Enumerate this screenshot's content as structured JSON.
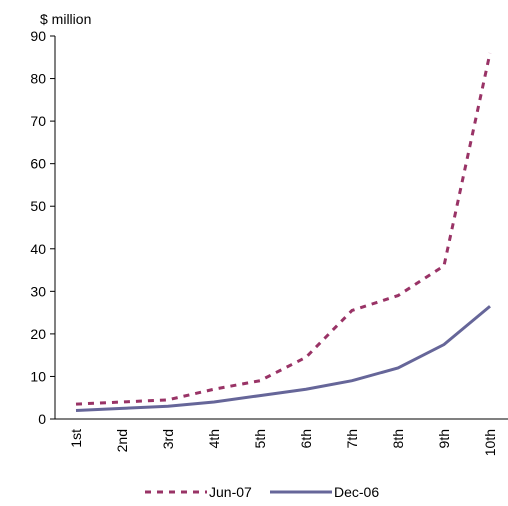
{
  "chart_data": {
    "type": "line",
    "y_label": "$ million",
    "categories": [
      "1st",
      "2nd",
      "3rd",
      "4th",
      "5th",
      "6th",
      "7th",
      "8th",
      "9th",
      "10th"
    ],
    "series": [
      {
        "name": "Jun-07",
        "color": "#993366",
        "dashed": true,
        "values": [
          3.5,
          4,
          4.5,
          7,
          9,
          14.5,
          25.5,
          29,
          36,
          86
        ]
      },
      {
        "name": "Dec-06",
        "color": "#666699",
        "dashed": false,
        "values": [
          2,
          2.5,
          3,
          4,
          5.5,
          7,
          9,
          12,
          17.5,
          26.5
        ]
      }
    ],
    "ylim": [
      0,
      90
    ],
    "yticks": [
      0,
      10,
      20,
      30,
      40,
      50,
      60,
      70,
      80,
      90
    ],
    "grid": false
  }
}
